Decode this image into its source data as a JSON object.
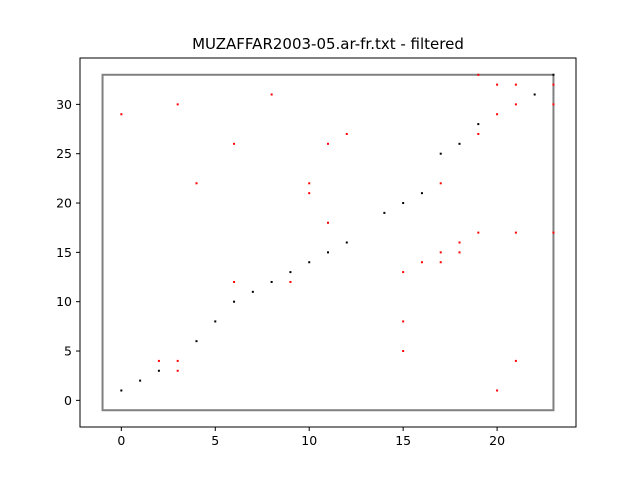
{
  "chart_data": {
    "type": "scatter",
    "title": "MUZAFFAR2003-05.ar-fr.txt - filtered",
    "xlabel": "",
    "ylabel": "",
    "xlim": [
      -2.2,
      24.2
    ],
    "ylim": [
      -2.7,
      34.7
    ],
    "xticks": [
      0,
      5,
      10,
      15,
      20
    ],
    "yticks": [
      0,
      5,
      10,
      15,
      20,
      25,
      30
    ],
    "grid": false,
    "frame_rect": {
      "x0": -1,
      "x1": 23,
      "y0": -1,
      "y1": 33,
      "color": "#808080"
    },
    "series": [
      {
        "color": "#000000",
        "points": [
          [
            0,
            1
          ],
          [
            1,
            2
          ],
          [
            2,
            3
          ],
          [
            4,
            6
          ],
          [
            5,
            8
          ],
          [
            6,
            10
          ],
          [
            7,
            11
          ],
          [
            8,
            12
          ],
          [
            9,
            13
          ],
          [
            10,
            14
          ],
          [
            11,
            15
          ],
          [
            12,
            16
          ],
          [
            14,
            19
          ],
          [
            15,
            20
          ],
          [
            16,
            21
          ],
          [
            17,
            25
          ],
          [
            18,
            26
          ],
          [
            19,
            28
          ],
          [
            22,
            31
          ],
          [
            23,
            33
          ]
        ]
      },
      {
        "color": "#ff0000",
        "points": [
          [
            0,
            29
          ],
          [
            2,
            4
          ],
          [
            3,
            30
          ],
          [
            3,
            4
          ],
          [
            3,
            3
          ],
          [
            4,
            22
          ],
          [
            6,
            26
          ],
          [
            6,
            12
          ],
          [
            8,
            31
          ],
          [
            9,
            12
          ],
          [
            10,
            22
          ],
          [
            10,
            21
          ],
          [
            11,
            26
          ],
          [
            11,
            18
          ],
          [
            12,
            27
          ],
          [
            15,
            13
          ],
          [
            15,
            8
          ],
          [
            15,
            5
          ],
          [
            16,
            14
          ],
          [
            17,
            22
          ],
          [
            17,
            15
          ],
          [
            17,
            14
          ],
          [
            18,
            16
          ],
          [
            18,
            15
          ],
          [
            19,
            33
          ],
          [
            19,
            27
          ],
          [
            19,
            17
          ],
          [
            20,
            32
          ],
          [
            20,
            29
          ],
          [
            20,
            1
          ],
          [
            21,
            32
          ],
          [
            21,
            30
          ],
          [
            21,
            17
          ],
          [
            21,
            4
          ],
          [
            23,
            32
          ],
          [
            23,
            30
          ],
          [
            23,
            17
          ]
        ]
      }
    ]
  }
}
